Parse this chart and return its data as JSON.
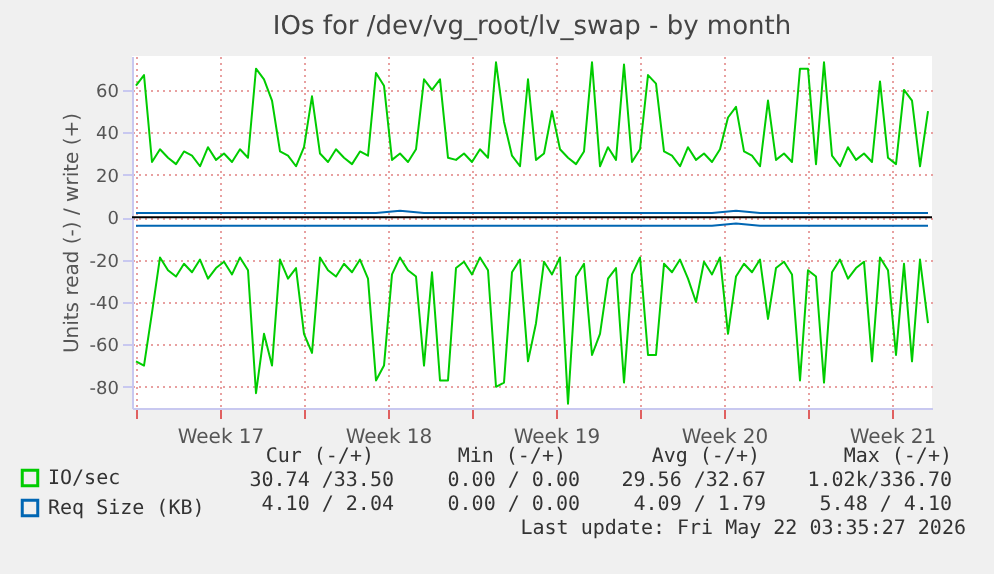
{
  "chart_data": {
    "type": "line",
    "title": "IOs for /dev/vg_root/lv_swap - by month",
    "ylabel": "Units read (-) / write (+)",
    "x": [
      "2026-04-20T00:00",
      "2026-04-20T08:00",
      "2026-04-20T16:00",
      "2026-04-21T00:00",
      "2026-04-21T08:00",
      "2026-04-21T16:00",
      "2026-04-22T00:00",
      "2026-04-22T08:00",
      "2026-04-22T16:00",
      "2026-04-23T00:00",
      "2026-04-23T08:00",
      "2026-04-23T16:00",
      "2026-04-24T00:00",
      "2026-04-24T08:00",
      "2026-04-24T16:00",
      "2026-04-25T00:00",
      "2026-04-25T08:00",
      "2026-04-25T16:00",
      "2026-04-26T00:00",
      "2026-04-26T08:00",
      "2026-04-26T16:00",
      "2026-04-27T00:00",
      "2026-04-27T08:00",
      "2026-04-27T16:00",
      "2026-04-28T00:00",
      "2026-04-28T08:00",
      "2026-04-28T16:00",
      "2026-04-29T00:00",
      "2026-04-29T08:00",
      "2026-04-29T16:00",
      "2026-04-30T00:00",
      "2026-04-30T08:00",
      "2026-04-30T16:00",
      "2026-05-01T00:00",
      "2026-05-01T08:00",
      "2026-05-01T16:00",
      "2026-05-02T00:00",
      "2026-05-02T08:00",
      "2026-05-02T16:00",
      "2026-05-03T00:00",
      "2026-05-03T08:00",
      "2026-05-03T16:00",
      "2026-05-04T00:00",
      "2026-05-04T08:00",
      "2026-05-04T16:00",
      "2026-05-05T00:00",
      "2026-05-05T08:00",
      "2026-05-05T16:00",
      "2026-05-06T00:00",
      "2026-05-06T08:00",
      "2026-05-06T16:00",
      "2026-05-07T00:00",
      "2026-05-07T08:00",
      "2026-05-07T16:00",
      "2026-05-08T00:00",
      "2026-05-08T08:00",
      "2026-05-08T16:00",
      "2026-05-09T00:00",
      "2026-05-09T08:00",
      "2026-05-09T16:00",
      "2026-05-10T00:00",
      "2026-05-10T08:00",
      "2026-05-10T16:00",
      "2026-05-11T00:00",
      "2026-05-11T08:00",
      "2026-05-11T16:00",
      "2026-05-12T00:00",
      "2026-05-12T08:00",
      "2026-05-12T16:00",
      "2026-05-13T00:00",
      "2026-05-13T08:00",
      "2026-05-13T16:00",
      "2026-05-14T00:00",
      "2026-05-14T08:00",
      "2026-05-14T16:00",
      "2026-05-15T00:00",
      "2026-05-15T08:00",
      "2026-05-15T16:00",
      "2026-05-16T00:00",
      "2026-05-16T08:00",
      "2026-05-16T16:00",
      "2026-05-17T00:00",
      "2026-05-17T08:00",
      "2026-05-17T16:00",
      "2026-05-18T00:00",
      "2026-05-18T08:00",
      "2026-05-18T16:00",
      "2026-05-19T00:00",
      "2026-05-19T08:00",
      "2026-05-19T16:00",
      "2026-05-20T00:00",
      "2026-05-20T08:00",
      "2026-05-20T16:00",
      "2026-05-21T00:00",
      "2026-05-21T08:00",
      "2026-05-21T16:00",
      "2026-05-22T00:00",
      "2026-05-22T08:00",
      "2026-05-22T16:00",
      "2026-05-23T00:00"
    ],
    "series": [
      {
        "name": "IO/sec",
        "color": "#00cc00",
        "values": [
          62,
          67,
          26,
          32,
          28,
          25,
          31,
          29,
          24,
          33,
          27,
          30,
          26,
          32,
          28,
          70,
          65,
          55,
          31,
          29,
          24,
          33,
          57,
          30,
          26,
          32,
          28,
          25,
          31,
          29,
          68,
          62,
          27,
          30,
          26,
          32,
          65,
          60,
          65,
          28,
          27,
          30,
          26,
          32,
          28,
          73,
          45,
          29,
          24,
          65,
          27,
          30,
          50,
          32,
          28,
          25,
          31,
          73,
          24,
          33,
          27,
          72,
          26,
          32,
          67,
          63,
          31,
          29,
          24,
          33,
          27,
          30,
          26,
          32,
          47,
          52,
          31,
          29,
          24,
          55,
          27,
          30,
          26,
          70,
          70,
          25,
          73,
          29,
          24,
          33,
          27,
          30,
          26,
          64,
          28,
          25,
          60,
          55,
          24,
          50
        ]
      },
      {
        "color": "#00cc00",
        "values": [
          -68,
          -70,
          -45,
          -19,
          -25,
          -28,
          -22,
          -26,
          -20,
          -29,
          -24,
          -21,
          -27,
          -19,
          -25,
          -83,
          -55,
          -70,
          -20,
          -29,
          -24,
          -55,
          -64,
          -19,
          -25,
          -28,
          -22,
          -26,
          -20,
          -29,
          -77,
          -70,
          -27,
          -19,
          -25,
          -28,
          -70,
          -26,
          -77,
          -77,
          -24,
          -21,
          -27,
          -19,
          -25,
          -80,
          -78,
          -26,
          -20,
          -68,
          -50,
          -21,
          -27,
          -19,
          -88,
          -28,
          -22,
          -65,
          -55,
          -29,
          -24,
          -78,
          -27,
          -19,
          -65,
          -65,
          -22,
          -26,
          -20,
          -29,
          -40,
          -21,
          -27,
          -19,
          -55,
          -28,
          -22,
          -26,
          -20,
          -48,
          -24,
          -21,
          -27,
          -77,
          -25,
          -28,
          -78,
          -26,
          -20,
          -29,
          -24,
          -21,
          -68,
          -19,
          -25,
          -65,
          -22,
          -68,
          -20,
          -50
        ]
      },
      {
        "name": "Req Size (KB)",
        "color": "#0066b3",
        "x": [
          "2026-04-20",
          "2026-04-21",
          "2026-04-22",
          "2026-04-23",
          "2026-04-24",
          "2026-04-25",
          "2026-04-26",
          "2026-04-27",
          "2026-04-28",
          "2026-04-29",
          "2026-04-30",
          "2026-05-01",
          "2026-05-02",
          "2026-05-03",
          "2026-05-04",
          "2026-05-05",
          "2026-05-06",
          "2026-05-07",
          "2026-05-08",
          "2026-05-09",
          "2026-05-10",
          "2026-05-11",
          "2026-05-12",
          "2026-05-13",
          "2026-05-14",
          "2026-05-15",
          "2026-05-16",
          "2026-05-17",
          "2026-05-18",
          "2026-05-19",
          "2026-05-20",
          "2026-05-21",
          "2026-05-22",
          "2026-05-23"
        ],
        "values": [
          2,
          2,
          2,
          2,
          2,
          2,
          2,
          2,
          2,
          2,
          2,
          3,
          2,
          2,
          2,
          2,
          2,
          2,
          2,
          2,
          2,
          2,
          2,
          2,
          2,
          3,
          2,
          2,
          2,
          2,
          2,
          2,
          2,
          2
        ]
      },
      {
        "color": "#0066b3",
        "x": [
          "2026-04-20",
          "2026-04-21",
          "2026-04-22",
          "2026-04-23",
          "2026-04-24",
          "2026-04-25",
          "2026-04-26",
          "2026-04-27",
          "2026-04-28",
          "2026-04-29",
          "2026-04-30",
          "2026-05-01",
          "2026-05-02",
          "2026-05-03",
          "2026-05-04",
          "2026-05-05",
          "2026-05-06",
          "2026-05-07",
          "2026-05-08",
          "2026-05-09",
          "2026-05-10",
          "2026-05-11",
          "2026-05-12",
          "2026-05-13",
          "2026-05-14",
          "2026-05-15",
          "2026-05-16",
          "2026-05-17",
          "2026-05-18",
          "2026-05-19",
          "2026-05-20",
          "2026-05-21",
          "2026-05-22",
          "2026-05-23"
        ],
        "values": [
          -4,
          -4,
          -4,
          -4,
          -4,
          -4,
          -4,
          -4,
          -4,
          -4,
          -4,
          -4,
          -4,
          -4,
          -4,
          -4,
          -4,
          -4,
          -4,
          -4,
          -4,
          -4,
          -4,
          -4,
          -4,
          -3,
          -4,
          -4,
          -4,
          -4,
          -4,
          -4,
          -4,
          -4
        ]
      }
    ],
    "xlim": [
      "2026-04-19T20:00",
      "2026-05-23T04:00"
    ],
    "xticks": [
      {
        "value": "2026-04-20",
        "label": null
      },
      {
        "value": "2026-04-23T12:00",
        "label": "Week 17"
      },
      {
        "value": "2026-04-27",
        "label": null
      },
      {
        "value": "2026-04-30T12:00",
        "label": "Week 18"
      },
      {
        "value": "2026-05-04",
        "label": null
      },
      {
        "value": "2026-05-07T12:00",
        "label": "Week 19"
      },
      {
        "value": "2026-05-11",
        "label": null
      },
      {
        "value": "2026-05-14T12:00",
        "label": "Week 20"
      },
      {
        "value": "2026-05-18",
        "label": null
      },
      {
        "value": "2026-05-21T12:00",
        "label": "Week 21"
      }
    ],
    "ylim": [
      -90,
      76
    ],
    "yticks": [
      -80,
      -60,
      -40,
      -20,
      0,
      20,
      40,
      60
    ],
    "ref_lines": [
      {
        "axis": "y",
        "value": 0,
        "color": "#000000"
      }
    ],
    "grid": true,
    "legend": "bottom left",
    "line_style": "solid",
    "annotations": [
      "Cur (-/+)",
      "Min (-/+)",
      "Avg (-/+)",
      "Max (-/+)",
      "30.74 /33.50",
      "0.00 / 0.00",
      "29.56 /32.67",
      "1.02k/336.70",
      "4.10 / 2.04",
      "0.00 / 0.00",
      "4.09 / 1.79",
      "5.48 / 4.10",
      "Last update: Fri May 22 03:35:27 2026"
    ]
  }
}
